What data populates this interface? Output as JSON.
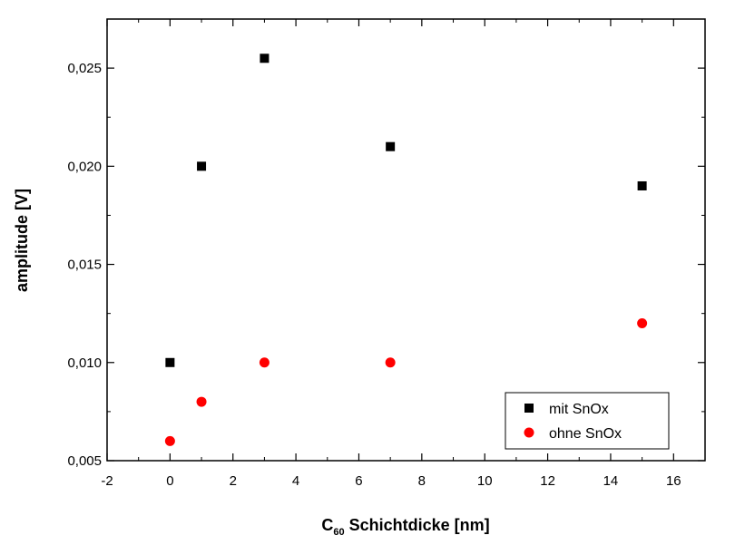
{
  "chart_data": {
    "type": "scatter",
    "title": "",
    "xlabel": {
      "base": "C",
      "subscript": "60",
      "rest": " Schichtdicke [nm]"
    },
    "ylabel": "amplitude [V]",
    "xlim": [
      -2,
      17
    ],
    "ylim": [
      0.005,
      0.0275
    ],
    "xticks": [
      -2,
      0,
      2,
      4,
      6,
      8,
      10,
      12,
      14,
      16
    ],
    "xtick_labels": [
      "-2",
      "0",
      "2",
      "4",
      "6",
      "8",
      "10",
      "12",
      "14",
      "16"
    ],
    "yticks": [
      0.005,
      0.01,
      0.015,
      0.02,
      0.025
    ],
    "ytick_labels": [
      "0,005",
      "0,010",
      "0,015",
      "0,020",
      "0,025"
    ],
    "grid": false,
    "legend_position": "bottom-right",
    "series": [
      {
        "name": "mit SnOx",
        "marker": "square",
        "color": "#000000",
        "x": [
          0,
          1,
          3,
          7,
          15
        ],
        "y": [
          0.01,
          0.02,
          0.0255,
          0.021,
          0.019
        ]
      },
      {
        "name": "ohne SnOx",
        "marker": "circle",
        "color": "#ff0000",
        "x": [
          0,
          1,
          3,
          7,
          15
        ],
        "y": [
          0.006,
          0.008,
          0.01,
          0.01,
          0.012
        ]
      }
    ]
  }
}
